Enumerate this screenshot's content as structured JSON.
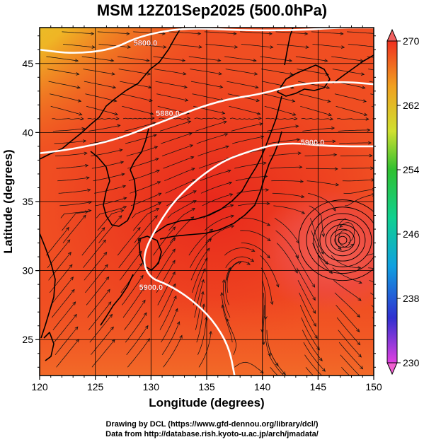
{
  "title": "MSM 12Z01Sep2025 (500.0hPa)",
  "chart_data": {
    "type": "heatmap",
    "title": "MSM 12Z01Sep2025 (500.0hPa)",
    "xlabel": "Longitude (degrees)",
    "ylabel": "Latitude  (degrees)",
    "xlim": [
      120,
      150
    ],
    "ylim": [
      22.4,
      47.6
    ],
    "x_ticks": [
      "120",
      "125",
      "130",
      "135",
      "140",
      "145",
      "150"
    ],
    "y_ticks": [
      "25",
      "30",
      "35",
      "40",
      "45"
    ],
    "colorbar": {
      "range": [
        230,
        270
      ],
      "ticks": [
        "230",
        "238",
        "246",
        "254",
        "262",
        "270"
      ],
      "stops": [
        "#e040e0",
        "#3030d0",
        "#10a0e0",
        "#10d090",
        "#30c030",
        "#d0e030",
        "#f0a020",
        "#f03020"
      ]
    },
    "contours": [
      {
        "label": "5880.0",
        "points": [
          [
            120.0,
            38.5
          ],
          [
            123.0,
            38.8
          ],
          [
            127.0,
            39.5
          ],
          [
            131.0,
            40.8
          ],
          [
            136.0,
            42.3
          ],
          [
            140.0,
            42.8
          ],
          [
            143.0,
            43.5
          ],
          [
            147.0,
            43.7
          ],
          [
            150.0,
            43.5
          ]
        ]
      },
      {
        "label": "5800.0",
        "points": [
          [
            120.0,
            46.0
          ],
          [
            123.0,
            45.7
          ],
          [
            126.5,
            46.0
          ],
          [
            129.0,
            47.0
          ],
          [
            133.0,
            47.6
          ],
          [
            138.0,
            47.4
          ],
          [
            143.0,
            47.4
          ],
          [
            147.0,
            47.6
          ],
          [
            150.0,
            47.6
          ]
        ]
      },
      {
        "label": "5900.0",
        "points": [
          [
            150.0,
            39.0
          ],
          [
            146.0,
            39.0
          ],
          [
            142.0,
            39.3
          ],
          [
            139.0,
            38.7
          ],
          [
            136.0,
            37.8
          ],
          [
            132.5,
            35.5
          ],
          [
            130.5,
            33.2
          ],
          [
            129.2,
            31.0
          ],
          [
            129.8,
            29.5
          ],
          [
            131.5,
            29.0
          ],
          [
            133.5,
            28.0
          ],
          [
            135.5,
            26.5
          ],
          [
            137.0,
            24.5
          ],
          [
            137.5,
            22.4
          ]
        ]
      }
    ],
    "contour_labels": [
      {
        "text": "5800.0",
        "x": 129.5,
        "y": 46.3
      },
      {
        "text": "5880.0",
        "x": 131.5,
        "y": 41.2
      },
      {
        "text": "5900.0",
        "x": 144.5,
        "y": 39.1
      },
      {
        "text": "5900.0",
        "x": 130.0,
        "y": 28.6
      }
    ],
    "typhoon_center": [
      147.2,
      32.2
    ]
  },
  "credits": [
    "Drawing by DCL (https://www.gfd-dennou.org/library/dcl/)",
    "Data from http://database.rish.kyoto-u.ac.jp/arch/jmadata/"
  ]
}
